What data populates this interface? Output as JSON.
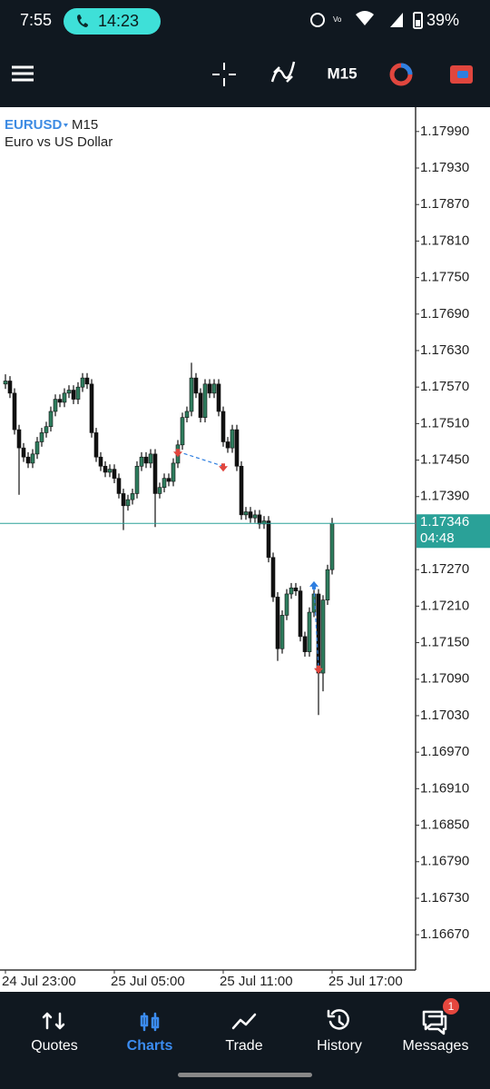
{
  "status_bar": {
    "time": "7:55",
    "call_timer": "14:23",
    "battery": "39%"
  },
  "toolbar": {
    "timeframe": "M15"
  },
  "chart_data": {
    "type": "candlestick",
    "symbol": "EURUSD",
    "timeframe": "M15",
    "description": "Euro vs US Dollar",
    "up_color": "#2e7d5e",
    "down_color": "#111111",
    "open": [
      1.17575,
      1.1758,
      1.1756,
      1.175,
      1.1747,
      1.17455,
      1.17445,
      1.1746,
      1.1748,
      1.17495,
      1.17505,
      1.1753,
      1.1755,
      1.17545,
      1.1756,
      1.17565,
      1.1755,
      1.1757,
      1.17585,
      1.17575,
      1.17495,
      1.17455,
      1.1744,
      1.1743,
      1.17435,
      1.1742,
      1.17395,
      1.17375,
      1.17385,
      1.17395,
      1.1744,
      1.17455,
      1.17445,
      1.1746,
      1.17395,
      1.17405,
      1.1742,
      1.17415,
      1.17445,
      1.17475,
      1.1752,
      1.1753,
      1.17585,
      1.1756,
      1.1752,
      1.17575,
      1.1756,
      1.17575,
      1.1753,
      1.1748,
      1.1747,
      1.175,
      1.1744,
      1.1736,
      1.17365,
      1.17355,
      1.1736,
      1.17345,
      1.1735,
      1.1729,
      1.17225,
      1.1714,
      1.17195,
      1.1723,
      1.1724,
      1.17235,
      1.1716,
      1.17135,
      1.172,
      1.1723,
      1.171,
      1.1722,
      1.1727
    ],
    "high": [
      1.17591,
      1.17588,
      1.17568,
      1.17508,
      1.17478,
      1.17463,
      1.17468,
      1.17488,
      1.17503,
      1.17513,
      1.17538,
      1.17558,
      1.17558,
      1.17568,
      1.17573,
      1.17573,
      1.17578,
      1.17593,
      1.17593,
      1.17583,
      1.17503,
      1.17463,
      1.17448,
      1.17443,
      1.17443,
      1.17428,
      1.17403,
      1.17393,
      1.17403,
      1.17448,
      1.17463,
      1.17463,
      1.17468,
      1.17468,
      1.17413,
      1.17428,
      1.17428,
      1.17453,
      1.17483,
      1.17528,
      1.17538,
      1.1761,
      1.17593,
      1.17568,
      1.17583,
      1.17583,
      1.17583,
      1.17583,
      1.17538,
      1.17488,
      1.17508,
      1.17508,
      1.17448,
      1.17373,
      1.17373,
      1.17368,
      1.17368,
      1.17358,
      1.17358,
      1.17298,
      1.17233,
      1.17203,
      1.17238,
      1.17248,
      1.17248,
      1.17243,
      1.17168,
      1.17208,
      1.17238,
      1.17238,
      1.17228,
      1.17278,
      1.17355
    ],
    "low": [
      1.17567,
      1.17552,
      1.17492,
      1.17393,
      1.17447,
      1.17437,
      1.17437,
      1.17452,
      1.17472,
      1.17487,
      1.17497,
      1.17522,
      1.17537,
      1.17537,
      1.17552,
      1.17542,
      1.17542,
      1.17562,
      1.17567,
      1.17487,
      1.17447,
      1.17432,
      1.17422,
      1.17422,
      1.17412,
      1.17387,
      1.17335,
      1.17367,
      1.17377,
      1.17387,
      1.17432,
      1.17437,
      1.17437,
      1.1734,
      1.17387,
      1.17397,
      1.17407,
      1.17407,
      1.17437,
      1.17467,
      1.17512,
      1.17522,
      1.17552,
      1.17512,
      1.17512,
      1.17552,
      1.17552,
      1.17522,
      1.17472,
      1.17462,
      1.17462,
      1.17432,
      1.17352,
      1.17352,
      1.17347,
      1.17347,
      1.17337,
      1.17337,
      1.17282,
      1.17217,
      1.1712,
      1.17132,
      1.17187,
      1.17222,
      1.17227,
      1.17152,
      1.17127,
      1.17127,
      1.17192,
      1.17031,
      1.1707,
      1.17212,
      1.17262
    ],
    "close": [
      1.1758,
      1.1756,
      1.175,
      1.1747,
      1.17455,
      1.17445,
      1.1746,
      1.1748,
      1.17495,
      1.17505,
      1.1753,
      1.1755,
      1.17545,
      1.1756,
      1.17565,
      1.1755,
      1.1757,
      1.17585,
      1.17575,
      1.17495,
      1.17455,
      1.1744,
      1.1743,
      1.17435,
      1.1742,
      1.17395,
      1.17375,
      1.17385,
      1.17395,
      1.1744,
      1.17455,
      1.17445,
      1.1746,
      1.17395,
      1.17405,
      1.1742,
      1.17415,
      1.17445,
      1.17475,
      1.1752,
      1.1753,
      1.17585,
      1.1756,
      1.1752,
      1.17575,
      1.1756,
      1.17575,
      1.1753,
      1.1748,
      1.1747,
      1.175,
      1.1744,
      1.1736,
      1.17365,
      1.17355,
      1.1736,
      1.17345,
      1.1735,
      1.1729,
      1.17225,
      1.1714,
      1.17195,
      1.1723,
      1.1724,
      1.17235,
      1.1716,
      1.17135,
      1.172,
      1.1723,
      1.171,
      1.1722,
      1.1727,
      1.17346
    ],
    "xlim": [
      -1.2,
      90.4
    ],
    "xticks": [
      {
        "value": 0,
        "label": "24 Jul 23:00"
      },
      {
        "value": 24,
        "label": "25 Jul 05:00"
      },
      {
        "value": 48,
        "label": "25 Jul 11:00"
      },
      {
        "value": 72,
        "label": "25 Jul 17:00"
      }
    ],
    "ylim": [
      1.16612,
      1.1803
    ],
    "yticks": [
      {
        "value": 1.1799,
        "label": "1.17990"
      },
      {
        "value": 1.1793,
        "label": "1.17930"
      },
      {
        "value": 1.1787,
        "label": "1.17870"
      },
      {
        "value": 1.1781,
        "label": "1.17810"
      },
      {
        "value": 1.1775,
        "label": "1.17750"
      },
      {
        "value": 1.1769,
        "label": "1.17690"
      },
      {
        "value": 1.1763,
        "label": "1.17630"
      },
      {
        "value": 1.1757,
        "label": "1.17570"
      },
      {
        "value": 1.1751,
        "label": "1.17510"
      },
      {
        "value": 1.1745,
        "label": "1.17450"
      },
      {
        "value": 1.1739,
        "label": "1.17390"
      },
      {
        "value": 1.1727,
        "label": "1.17270"
      },
      {
        "value": 1.1721,
        "label": "1.17210"
      },
      {
        "value": 1.1715,
        "label": "1.17150"
      },
      {
        "value": 1.1709,
        "label": "1.17090"
      },
      {
        "value": 1.1703,
        "label": "1.17030"
      },
      {
        "value": 1.1697,
        "label": "1.16970"
      },
      {
        "value": 1.1691,
        "label": "1.16910"
      },
      {
        "value": 1.1685,
        "label": "1.16850"
      },
      {
        "value": 1.1679,
        "label": "1.16790"
      },
      {
        "value": 1.1673,
        "label": "1.16730"
      },
      {
        "value": 1.1667,
        "label": "1.16670"
      }
    ],
    "current_price": {
      "value": 1.17346,
      "label": "1.17346"
    },
    "bar_timer": "04:48",
    "current_color": "#2aa198",
    "trades": [
      {
        "entry": {
          "index": 38,
          "price": 1.17464,
          "color": "#e0463e",
          "direction": "down"
        },
        "exit": {
          "index": 48,
          "price": 1.1744,
          "color": "#e0463e",
          "direction": "down"
        }
      },
      {
        "entry": {
          "index": 68,
          "price": 1.17242,
          "color": "#2f7fe0",
          "direction": "up"
        },
        "exit": {
          "index": 69,
          "price": 1.17108,
          "color": "#e0463e",
          "direction": "down"
        }
      }
    ]
  },
  "bottom_nav": {
    "items": [
      "Quotes",
      "Charts",
      "Trade",
      "History",
      "Messages"
    ],
    "active": 1,
    "active_color": "#3b8cf0",
    "badge": "1"
  }
}
